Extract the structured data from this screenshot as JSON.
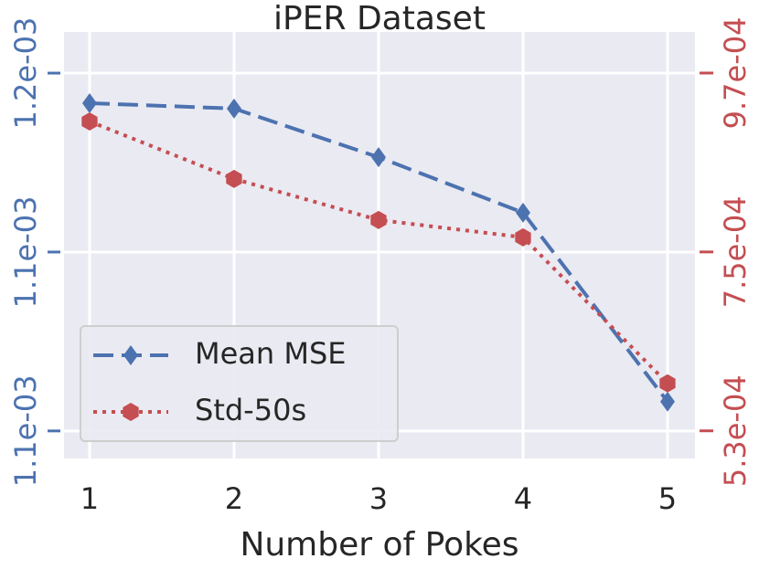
{
  "chart_data": {
    "type": "line",
    "title": "iPER Dataset",
    "xlabel": "Number of Pokes",
    "x": [
      1,
      2,
      3,
      4,
      5
    ],
    "series": [
      {
        "name": "Mean MSE",
        "color": "#4c72b0",
        "axis": "y",
        "linestyle": "dashed",
        "marker": "diamond",
        "values": [
          0.0011416,
          0.0011401,
          0.0011265,
          0.001111,
          0.0010582
        ]
      },
      {
        "name": "Std-50s",
        "color": "#c44e52",
        "axis": "y2",
        "linestyle": "dotted",
        "marker": "hexagon",
        "values": [
          0.0009105,
          0.0008398,
          0.0007893,
          0.000768,
          0.0005884
        ]
      }
    ],
    "xlim": [
      0.823,
      5.19
    ],
    "xticks": [
      1,
      2,
      3,
      4,
      5
    ],
    "ylim": [
      0.0010423,
      0.0011615
    ],
    "yticks": [
      {
        "value": 0.00105,
        "label": "1.1e-03"
      },
      {
        "value": 0.0011,
        "label": "1.1e-03"
      },
      {
        "value": 0.00115,
        "label": "1.2e-03"
      }
    ],
    "y2lim": [
      0.000496,
      0.0010205
    ],
    "y2ticks": [
      {
        "value": 0.00053,
        "label": "5.3e-04"
      },
      {
        "value": 0.00075,
        "label": "7.5e-04"
      },
      {
        "value": 0.00097,
        "label": "9.7e-04"
      }
    ],
    "grid": true,
    "legend": "lower left"
  }
}
